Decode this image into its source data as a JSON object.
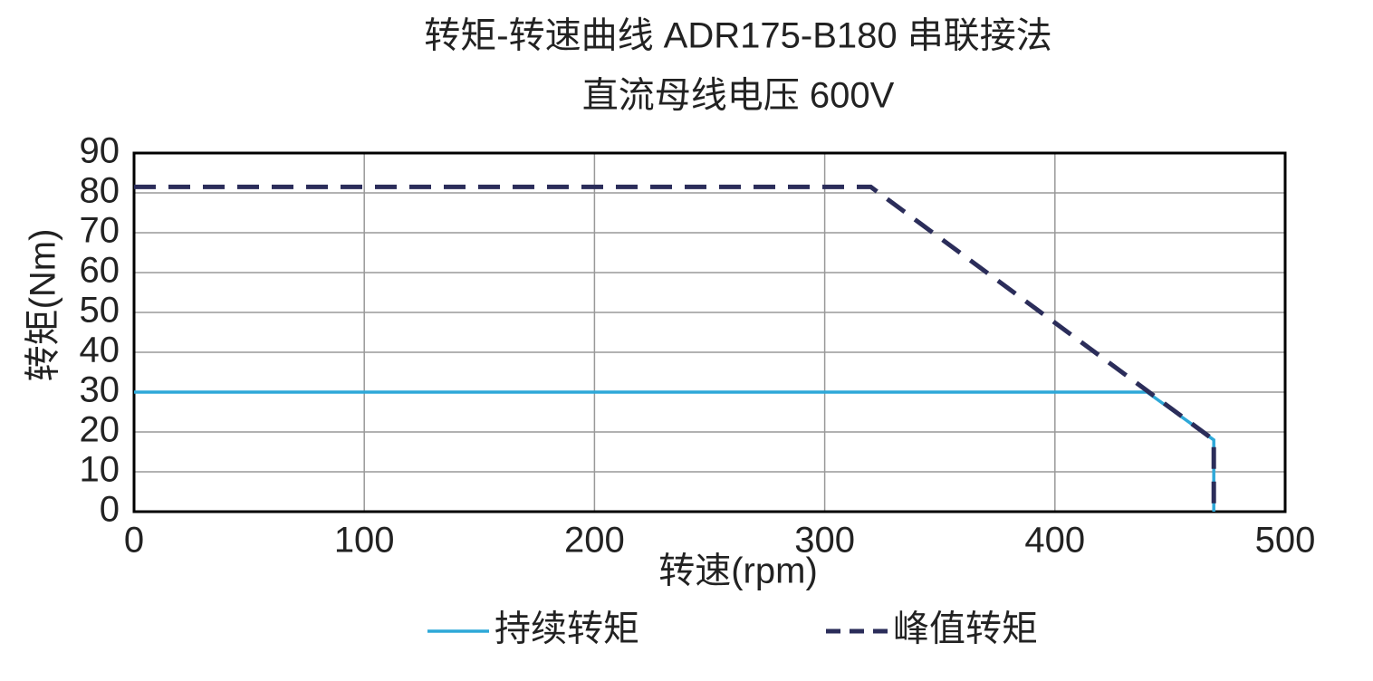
{
  "chart_data": {
    "type": "line",
    "title": "转矩-转速曲线 ADR175-B180 串联接法",
    "subtitle": "直流母线电压 600V",
    "xlabel": "转速(rpm)",
    "ylabel": "转矩(Nm)",
    "xlim": [
      0,
      500
    ],
    "xticks": [
      0,
      100,
      200,
      300,
      400,
      500
    ],
    "ylim": [
      0,
      90
    ],
    "yticks": [
      0,
      10,
      20,
      30,
      40,
      50,
      60,
      70,
      80,
      90
    ],
    "grid": true,
    "legend": "bottom",
    "series": [
      {
        "name": "持续转矩",
        "color": "#2ea8d8",
        "linestyle": "solid",
        "x": [
          0,
          440,
          469,
          469
        ],
        "values": [
          30,
          30,
          18,
          0
        ]
      },
      {
        "name": "峰值转矩",
        "color": "#2b2d5a",
        "linestyle": "dashed",
        "x": [
          0,
          320,
          469,
          469
        ],
        "values": [
          81.5,
          81.5,
          18,
          0
        ]
      }
    ]
  }
}
